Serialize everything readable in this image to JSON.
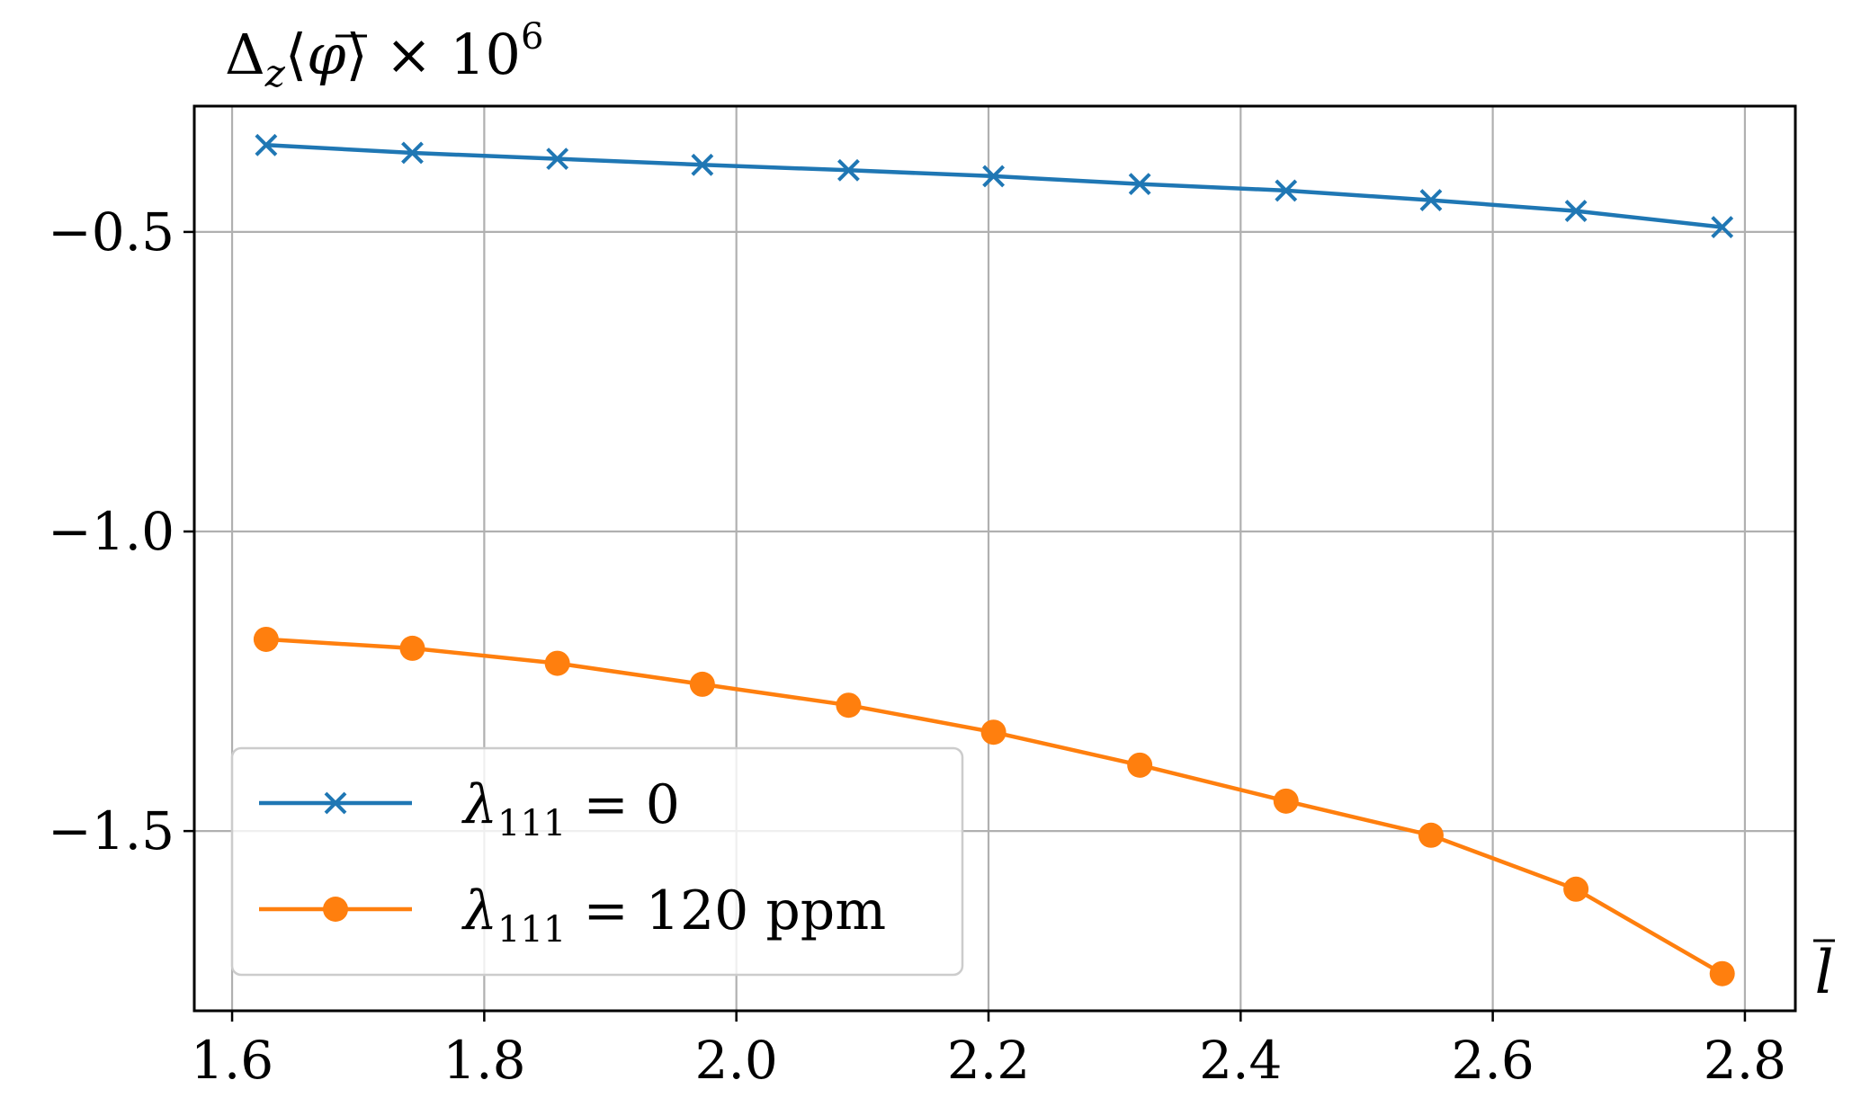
{
  "chart_data": {
    "type": "line",
    "xlabel": "l̄",
    "ylabel": "Δz⟨φ̄⟩ × 10^6",
    "xlim": [
      1.57,
      2.84
    ],
    "ylim": [
      -1.8,
      -0.29
    ],
    "xticks": [
      1.6,
      1.8,
      2.0,
      2.2,
      2.4,
      2.6,
      2.8
    ],
    "xtick_labels": [
      "1.6",
      "1.8",
      "2.0",
      "2.2",
      "2.4",
      "2.6",
      "2.8"
    ],
    "yticks": [
      -0.5,
      -1.0,
      -1.5
    ],
    "ytick_labels": [
      "−0.5",
      "−1.0",
      "−1.5"
    ],
    "grid": true,
    "legend_position": "lower-left",
    "series": [
      {
        "name": "λ111 = 0",
        "legend_symbol": "λ",
        "legend_sub": "111",
        "legend_rest": " = 0",
        "color": "#1f77b4",
        "marker": "x",
        "x": [
          1.627,
          1.743,
          1.858,
          1.973,
          2.089,
          2.204,
          2.32,
          2.436,
          2.551,
          2.666,
          2.782
        ],
        "y": [
          -0.355,
          -0.368,
          -0.378,
          -0.388,
          -0.397,
          -0.407,
          -0.42,
          -0.431,
          -0.447,
          -0.465,
          -0.492
        ]
      },
      {
        "name": "λ111 = 120 ppm",
        "legend_symbol": "λ",
        "legend_sub": "111",
        "legend_rest": " = 120 ppm",
        "color": "#ff7f0e",
        "marker": "o",
        "x": [
          1.627,
          1.743,
          1.858,
          1.973,
          2.089,
          2.204,
          2.32,
          2.436,
          2.551,
          2.666,
          2.782
        ],
        "y": [
          -1.18,
          -1.195,
          -1.22,
          -1.255,
          -1.29,
          -1.335,
          -1.39,
          -1.45,
          -1.507,
          -1.597,
          -1.738
        ]
      }
    ]
  }
}
